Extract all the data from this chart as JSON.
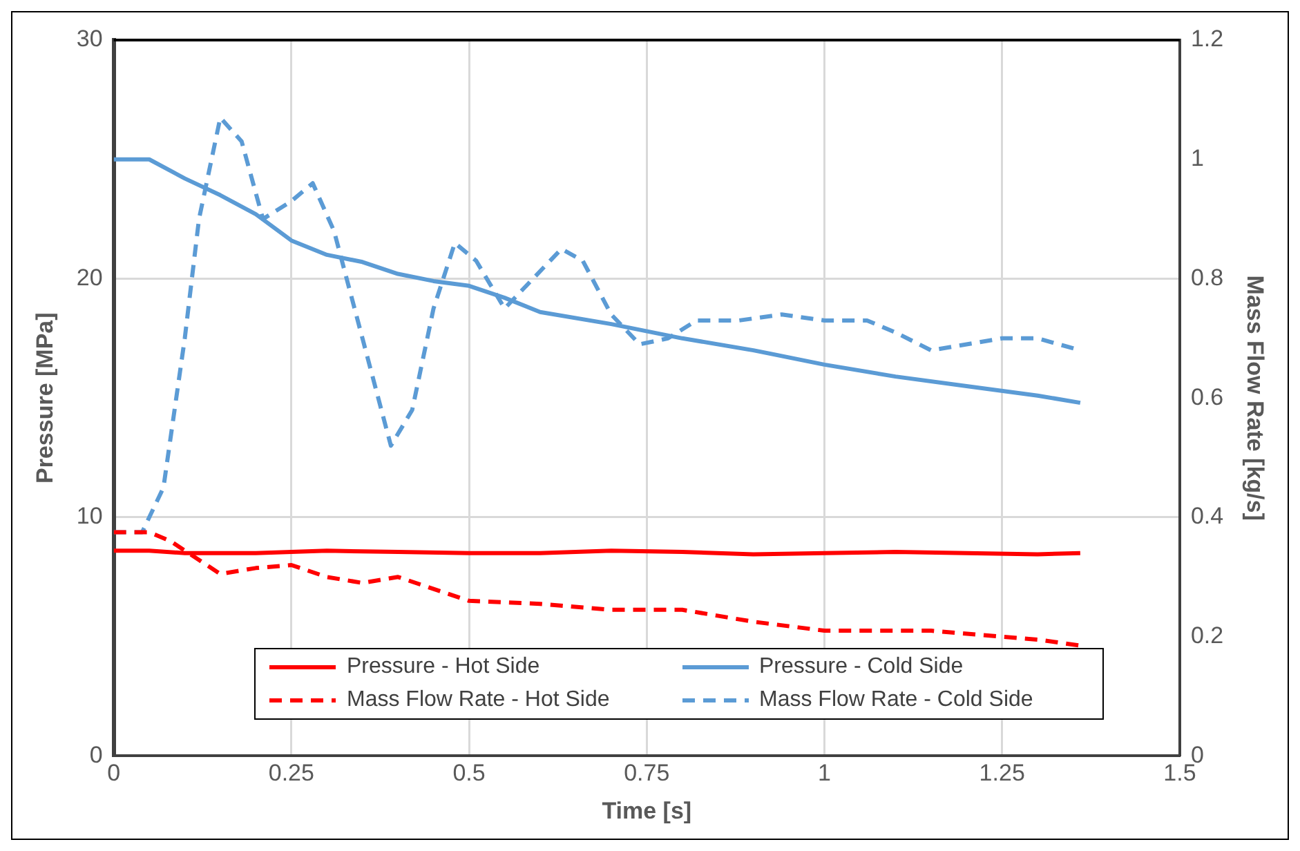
{
  "chart_data": {
    "type": "line",
    "xlabel": "Time [s]",
    "ylabel": "Pressure [MPa]",
    "y2label": "Mass Flow Rate [kg/s]",
    "xlim": [
      0,
      1.5
    ],
    "xticks": [
      0,
      0.25,
      0.5,
      0.75,
      1,
      1.25,
      1.5
    ],
    "ylim": [
      0,
      30
    ],
    "yticks": [
      0,
      10,
      20,
      30
    ],
    "y2lim": [
      0,
      1.2
    ],
    "y2ticks": [
      0,
      0.2,
      0.4,
      0.6,
      0.8,
      1,
      1.2
    ],
    "grid": true,
    "legend": "bottom",
    "marker": "none",
    "series": [
      {
        "name": "Pressure - Hot Side",
        "color": "#ff0000",
        "line_style": "solid",
        "x": [
          0,
          0.05,
          0.1,
          0.2,
          0.3,
          0.4,
          0.5,
          0.6,
          0.7,
          0.8,
          0.9,
          1.0,
          1.1,
          1.2,
          1.3,
          1.36
        ],
        "values": [
          8.6,
          8.6,
          8.5,
          8.5,
          8.6,
          8.55,
          8.5,
          8.5,
          8.6,
          8.55,
          8.45,
          8.5,
          8.55,
          8.5,
          8.45,
          8.5
        ]
      },
      {
        "name": "Pressure - Cold Side",
        "color": "#5b9bd5",
        "line_style": "solid",
        "x": [
          0,
          0.05,
          0.1,
          0.15,
          0.2,
          0.25,
          0.3,
          0.35,
          0.4,
          0.45,
          0.5,
          0.55,
          0.6,
          0.7,
          0.8,
          0.9,
          1.0,
          1.1,
          1.2,
          1.3,
          1.36
        ],
        "values": [
          25,
          25,
          24.2,
          23.5,
          22.7,
          21.6,
          21.0,
          20.7,
          20.2,
          19.9,
          19.7,
          19.2,
          18.6,
          18.1,
          17.5,
          17.0,
          16.4,
          15.9,
          15.5,
          15.1,
          14.8
        ]
      },
      {
        "name": "Mass Flow Rate - Hot Side",
        "color": "#ff0000",
        "line_style": "dashed",
        "axis": "y2",
        "x": [
          0,
          0.05,
          0.08,
          0.15,
          0.2,
          0.25,
          0.3,
          0.35,
          0.4,
          0.45,
          0.5,
          0.6,
          0.7,
          0.8,
          0.9,
          1.0,
          1.1,
          1.15,
          1.25,
          1.3,
          1.36
        ],
        "values": [
          0.375,
          0.375,
          0.36,
          0.305,
          0.315,
          0.32,
          0.3,
          0.29,
          0.3,
          0.28,
          0.26,
          0.255,
          0.245,
          0.245,
          0.225,
          0.21,
          0.21,
          0.21,
          0.2,
          0.195,
          0.185
        ]
      },
      {
        "name": "Mass Flow Rate - Cold Side",
        "color": "#5b9bd5",
        "line_style": "dashed",
        "axis": "y2",
        "x": [
          0,
          0.04,
          0.07,
          0.1,
          0.12,
          0.15,
          0.18,
          0.21,
          0.25,
          0.28,
          0.31,
          0.35,
          0.39,
          0.42,
          0.45,
          0.48,
          0.51,
          0.55,
          0.59,
          0.63,
          0.66,
          0.7,
          0.74,
          0.78,
          0.82,
          0.88,
          0.94,
          1.0,
          1.06,
          1.1,
          1.15,
          1.2,
          1.25,
          1.3,
          1.36
        ],
        "values": [
          0.375,
          0.375,
          0.45,
          0.7,
          0.9,
          1.07,
          1.03,
          0.9,
          0.93,
          0.96,
          0.88,
          0.7,
          0.52,
          0.58,
          0.75,
          0.86,
          0.83,
          0.75,
          0.8,
          0.85,
          0.83,
          0.74,
          0.69,
          0.7,
          0.73,
          0.73,
          0.74,
          0.73,
          0.73,
          0.71,
          0.68,
          0.69,
          0.7,
          0.7,
          0.68
        ]
      }
    ]
  }
}
